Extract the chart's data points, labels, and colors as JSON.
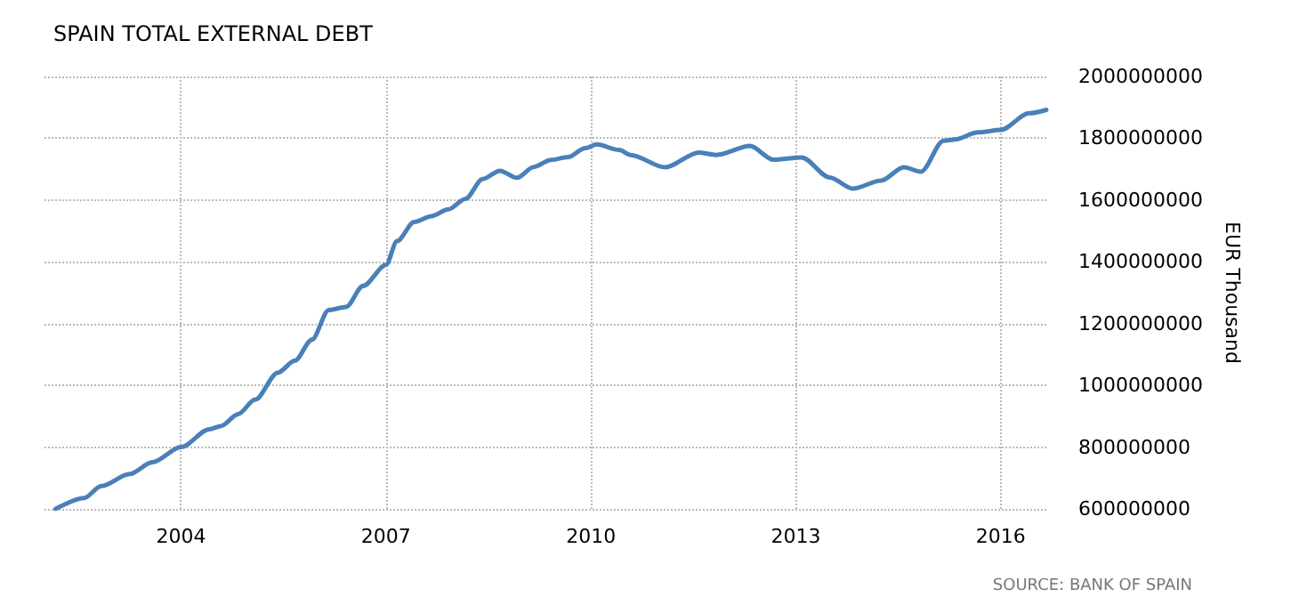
{
  "chart_data": {
    "type": "line",
    "title": "SPAIN TOTAL EXTERNAL DEBT",
    "y2label": "EUR Thousand",
    "annotations": [
      "SOURCE: BANK OF SPAIN"
    ],
    "series": [
      {
        "color": "#4a80b8",
        "axis": "y2",
        "x": [
          "2002-03",
          "2002-08",
          "2002-11",
          "2003-04",
          "2003-08",
          "2004-01",
          "2004-06",
          "2004-08",
          "2004-11",
          "2005-02",
          "2005-06",
          "2005-09",
          "2005-12",
          "2006-03",
          "2006-06",
          "2006-09",
          "2007-01",
          "2007-03",
          "2007-06",
          "2007-09",
          "2007-12",
          "2008-03",
          "2008-06",
          "2008-09",
          "2008-12",
          "2009-03",
          "2009-06",
          "2009-09",
          "2009-12",
          "2010-02",
          "2010-06",
          "2010-08",
          "2011-02",
          "2011-08",
          "2011-11",
          "2012-05",
          "2012-09",
          "2013-02",
          "2013-07",
          "2013-11",
          "2014-04",
          "2014-08",
          "2014-11",
          "2015-03",
          "2015-05",
          "2015-09",
          "2016-01",
          "2016-06",
          "2016-09"
        ],
        "values": [
          600000000,
          635000000,
          674000000,
          713000000,
          751000000,
          800000000,
          858000000,
          868000000,
          907000000,
          954000000,
          1041000000,
          1080000000,
          1148000000,
          1244000000,
          1254000000,
          1322000000,
          1390000000,
          1467000000,
          1529000000,
          1548000000,
          1570000000,
          1604000000,
          1668000000,
          1695000000,
          1672000000,
          1707000000,
          1730000000,
          1739000000,
          1768000000,
          1780000000,
          1762000000,
          1746000000,
          1706000000,
          1754000000,
          1746000000,
          1775000000,
          1731000000,
          1738000000,
          1673000000,
          1637000000,
          1663000000,
          1706000000,
          1692000000,
          1792000000,
          1796000000,
          1819000000,
          1827000000,
          1881000000,
          1892000000
        ]
      }
    ],
    "xlim": [
      "2002-01",
      "2016-09"
    ],
    "xticks": [
      "2004",
      "2007",
      "2010",
      "2013",
      "2016"
    ],
    "y2lim": [
      600000000,
      2000000000
    ],
    "y2ticks": [
      600000000,
      800000000,
      1000000000,
      1200000000,
      1400000000,
      1600000000,
      1800000000,
      2000000000
    ],
    "grid": true,
    "marker": "none",
    "line_style": "solid"
  }
}
